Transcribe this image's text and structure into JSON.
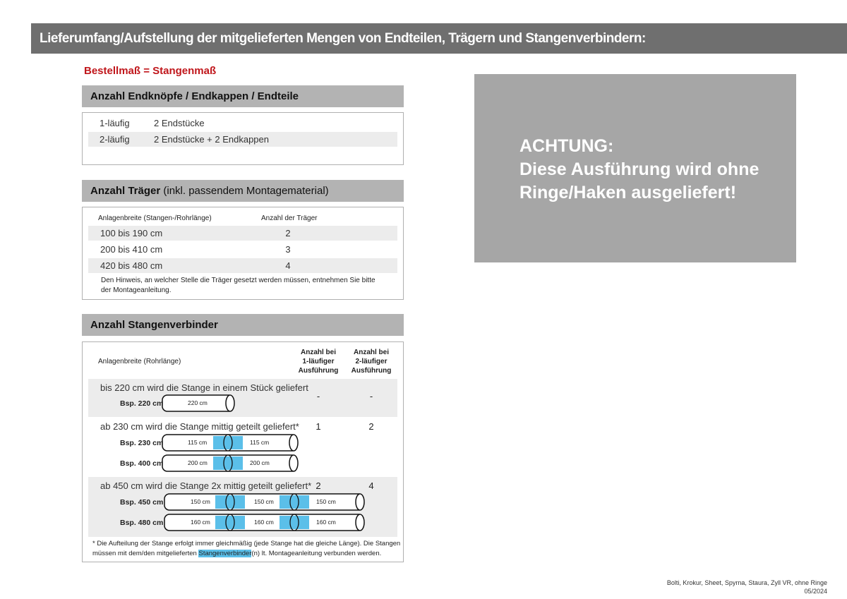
{
  "title": "Lieferumfang/Aufstellung der mitgelieferten Mengen von Endteilen, Trägern und Stangenverbindern:",
  "subtitle": "Bestellmaß = Stangenmaß",
  "endteile": {
    "heading": "Anzahl Endknöpfe / Endkappen / Endteile",
    "rows": [
      {
        "type": "1-läufig",
        "value": "2 Endstücke"
      },
      {
        "type": "2-läufig",
        "value": "2 Endstücke + 2 Endkappen"
      }
    ]
  },
  "traeger": {
    "heading_bold": "Anzahl Träger",
    "heading_rest": " (inkl. passendem Montagematerial)",
    "col1": "Anlagenbreite (Stangen-/Rohrlänge)",
    "col2": "Anzahl der Träger",
    "rows": [
      {
        "range": "100 bis 190 cm",
        "count": "2"
      },
      {
        "range": "200 bis 410 cm",
        "count": "3"
      },
      {
        "range": "420 bis 480 cm",
        "count": "4"
      }
    ],
    "note_line1": "Den Hinweis, an welcher Stelle die Träger gesetzt werden müssen, entnehmen Sie bitte",
    "note_line2": "der Montageanleitung."
  },
  "verbinder": {
    "heading": "Anzahl Stangenverbinder",
    "col1": "Anlagenbreite (Rohrlänge)",
    "col2": [
      "Anzahl bei",
      "1-läufiger",
      "Ausführung"
    ],
    "col3": [
      "Anzahl bei",
      "2-läufiger",
      "Ausführung"
    ],
    "groups": [
      {
        "text": "bis 220 cm wird die Stange in einem Stück geliefert",
        "one": "-",
        "two": "-",
        "examples": [
          {
            "label": "Bsp. 220 cm",
            "parts": [
              "220 cm"
            ]
          }
        ]
      },
      {
        "text": "ab 230 cm wird die Stange mittig geteilt geliefert*",
        "one": "1",
        "two": "2",
        "examples": [
          {
            "label": "Bsp. 230 cm",
            "parts": [
              "115 cm",
              "115 cm"
            ]
          },
          {
            "label": "Bsp. 400 cm",
            "parts": [
              "200 cm",
              "200 cm"
            ]
          }
        ]
      },
      {
        "text": "ab 450 cm wird die Stange 2x mittig geteilt geliefert*",
        "one": "2",
        "two": "4",
        "examples": [
          {
            "label": "Bsp. 450 cm",
            "parts": [
              "150 cm",
              "150 cm",
              "150 cm"
            ]
          },
          {
            "label": "Bsp. 480 cm",
            "parts": [
              "160 cm",
              "160 cm",
              "160 cm"
            ]
          }
        ]
      }
    ],
    "footnote_line1": "* Die Aufteilung der Stange erfolgt immer gleichmäßig (jede Stange hat die gleiche Länge). Die Stangen",
    "footnote_pre": "müssen mit dem/den mitgelieferten ",
    "footnote_highlight": "Stangenverbinder",
    "footnote_post": "(n) lt. Montageanleitung verbunden werden."
  },
  "warning": {
    "line1": "ACHTUNG:",
    "line2": "Diese Ausführung wird ohne",
    "line3": "Ringe/Haken ausgeliefert!"
  },
  "footer": {
    "products": "Bolti, Krokur, Sheet, Spyrna, Staura, Zyll VR, ohne Ringe",
    "date": "05/2024"
  },
  "colors": {
    "header": "#6f6f6f",
    "accent_red": "#c0161b",
    "connector_blue": "#5bbfe9",
    "warning_bg": "#a6a6a6"
  }
}
